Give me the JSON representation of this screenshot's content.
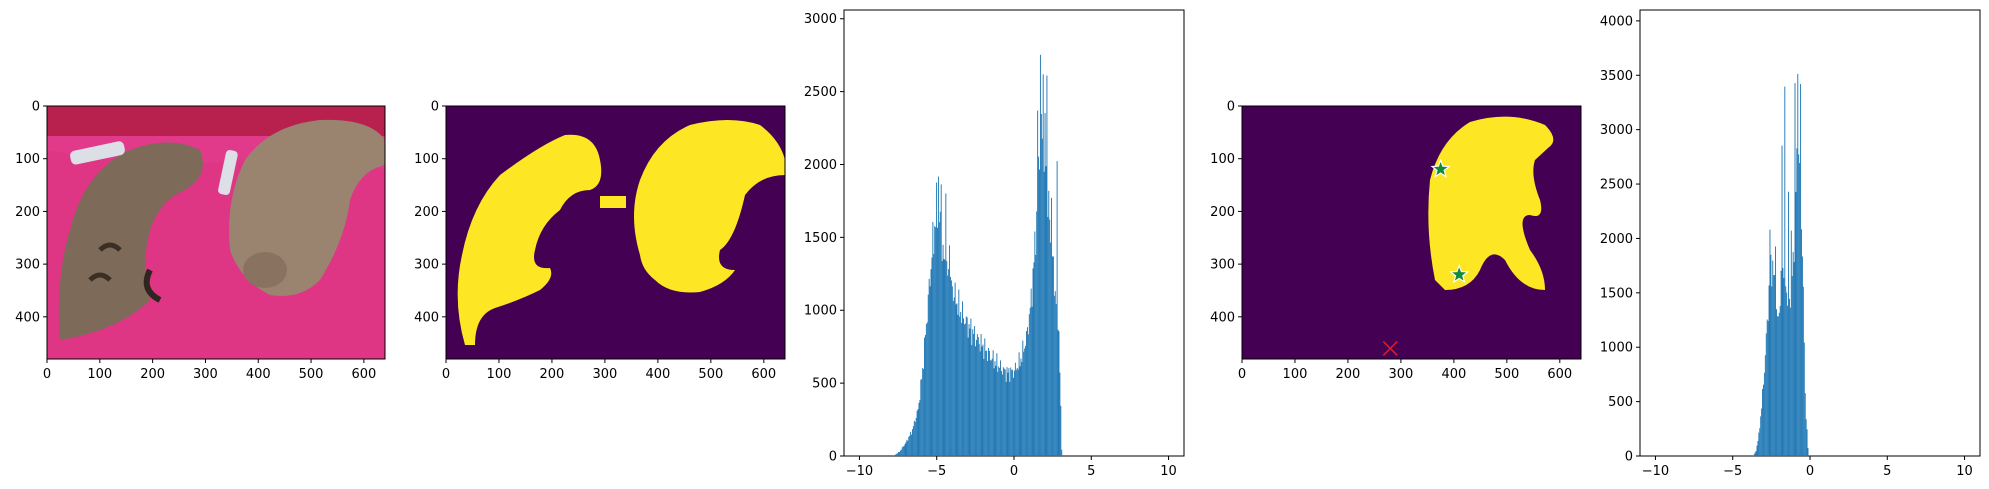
{
  "colors": {
    "mask_background": "#440154",
    "mask_foreground": "#fde725",
    "histogram_bar": "#1f77b4",
    "positive_point": "#138a36",
    "negative_point": "#e8171d",
    "photo_blanket": "#e23a8a",
    "photo_cushion": "#b8204d"
  },
  "chart_data": [
    {
      "type": "image",
      "content": "photo-two-cats-on-pink-blanket",
      "x_ticks": [
        "0",
        "100",
        "200",
        "300",
        "400",
        "500",
        "600"
      ],
      "y_ticks": [
        "0",
        "100",
        "200",
        "300",
        "400"
      ],
      "xlim": [
        0,
        640
      ],
      "ylim": [
        480,
        0
      ]
    },
    {
      "type": "heatmap",
      "content": "binary-mask-both-cats",
      "x_ticks": [
        "0",
        "100",
        "200",
        "300",
        "400",
        "500",
        "600"
      ],
      "y_ticks": [
        "0",
        "100",
        "200",
        "300",
        "400"
      ],
      "xlim": [
        0,
        640
      ],
      "ylim": [
        480,
        0
      ]
    },
    {
      "type": "bar",
      "content": "histogram",
      "x_ticks": [
        "−10",
        "−5",
        "0",
        "5",
        "10"
      ],
      "y_ticks": [
        "0",
        "500",
        "1000",
        "1500",
        "2000",
        "2500",
        "3000"
      ],
      "xlim": [
        -11,
        11
      ],
      "ylim": [
        0,
        3060
      ],
      "profile": [
        [
          -7.8,
          0
        ],
        [
          -7.4,
          30
        ],
        [
          -7.0,
          90
        ],
        [
          -6.6,
          170
        ],
        [
          -6.2,
          320
        ],
        [
          -5.9,
          600
        ],
        [
          -5.6,
          1000
        ],
        [
          -5.3,
          1400
        ],
        [
          -5.0,
          1700
        ],
        [
          -4.8,
          1600
        ],
        [
          -4.5,
          1300
        ],
        [
          -4.0,
          1150
        ],
        [
          -3.5,
          1000
        ],
        [
          -3.0,
          900
        ],
        [
          -2.5,
          820
        ],
        [
          -2.0,
          750
        ],
        [
          -1.5,
          680
        ],
        [
          -1.0,
          620
        ],
        [
          -0.5,
          570
        ],
        [
          0.0,
          580
        ],
        [
          0.4,
          650
        ],
        [
          0.8,
          800
        ],
        [
          1.1,
          1050
        ],
        [
          1.4,
          1500
        ],
        [
          1.6,
          2000
        ],
        [
          1.8,
          2200
        ],
        [
          2.0,
          2150
        ],
        [
          2.3,
          1600
        ],
        [
          2.6,
          1200
        ],
        [
          2.9,
          900
        ],
        [
          3.1,
          0
        ]
      ],
      "spikes": [
        [
          -4.9,
          1960
        ],
        [
          -4.7,
          1880
        ],
        [
          -4.4,
          2040
        ],
        [
          -4.2,
          1620
        ],
        [
          1.5,
          2300
        ],
        [
          1.7,
          2920
        ],
        [
          1.9,
          2600
        ],
        [
          2.1,
          2580
        ],
        [
          2.4,
          1850
        ],
        [
          2.8,
          1820
        ]
      ]
    },
    {
      "type": "heatmap",
      "content": "binary-mask-right-cat-with-prompt-points",
      "x_ticks": [
        "0",
        "100",
        "200",
        "300",
        "400",
        "500",
        "600"
      ],
      "y_ticks": [
        "0",
        "100",
        "200",
        "300",
        "400"
      ],
      "xlim": [
        0,
        640
      ],
      "ylim": [
        480,
        0
      ],
      "positive_points": [
        [
          375,
          120
        ],
        [
          410,
          320
        ]
      ],
      "negative_points": [
        [
          280,
          460
        ]
      ]
    },
    {
      "type": "bar",
      "content": "histogram",
      "x_ticks": [
        "−10",
        "−5",
        "0",
        "5",
        "10"
      ],
      "y_ticks": [
        "0",
        "500",
        "1000",
        "1500",
        "2000",
        "2500",
        "3000",
        "3500",
        "4000"
      ],
      "xlim": [
        -11,
        11
      ],
      "ylim": [
        0,
        4100
      ],
      "profile": [
        [
          -3.7,
          0
        ],
        [
          -3.5,
          40
        ],
        [
          -3.3,
          200
        ],
        [
          -3.1,
          500
        ],
        [
          -2.9,
          900
        ],
        [
          -2.7,
          1400
        ],
        [
          -2.5,
          1800
        ],
        [
          -2.3,
          1600
        ],
        [
          -2.1,
          1200
        ],
        [
          -1.9,
          1500
        ],
        [
          -1.7,
          1800
        ],
        [
          -1.5,
          1500
        ],
        [
          -1.3,
          1400
        ],
        [
          -1.1,
          1700
        ],
        [
          -0.9,
          2500
        ],
        [
          -0.7,
          2800
        ],
        [
          -0.5,
          2000
        ],
        [
          -0.3,
          500
        ],
        [
          -0.1,
          0
        ]
      ],
      "spikes": [
        [
          -2.6,
          2070
        ],
        [
          -2.2,
          2120
        ],
        [
          -1.8,
          2950
        ],
        [
          -1.6,
          3050
        ],
        [
          -1.4,
          2260
        ],
        [
          -1.2,
          2100
        ],
        [
          -0.95,
          3360
        ],
        [
          -0.8,
          3900
        ],
        [
          -0.6,
          3200
        ]
      ]
    }
  ]
}
